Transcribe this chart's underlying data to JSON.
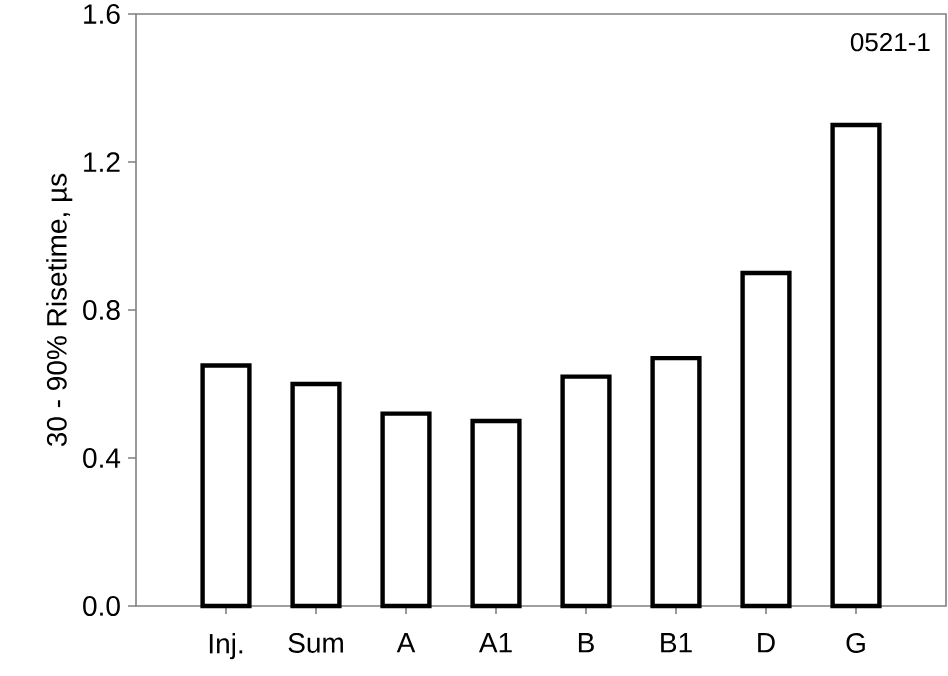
{
  "chart_data": {
    "type": "bar",
    "ylabel": "30 - 90% Risetime, µs",
    "categories": [
      "Inj.",
      "Sum",
      "A",
      "A1",
      "B",
      "B1",
      "D",
      "G"
    ],
    "values": [
      0.65,
      0.6,
      0.52,
      0.5,
      0.62,
      0.67,
      0.9,
      1.3
    ],
    "color": "#ffffff",
    "ylim": [
      0,
      1.6
    ],
    "yticks": [
      {
        "value": 0,
        "label": "0.0"
      },
      0.4,
      0.8,
      1.2,
      1.6
    ],
    "annotations": [
      "0521-1"
    ]
  }
}
